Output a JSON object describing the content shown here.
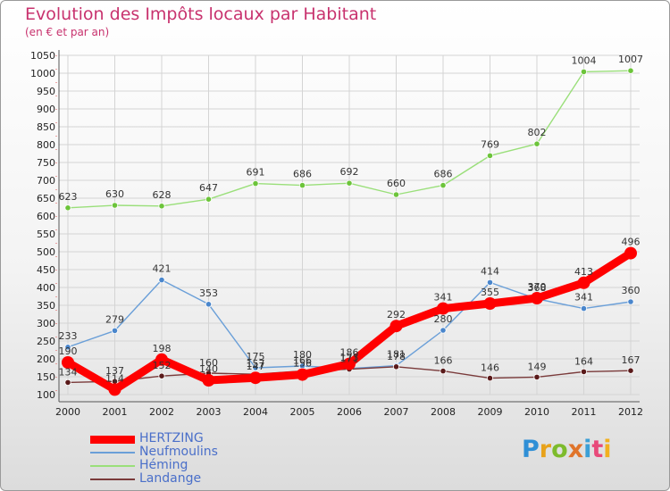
{
  "header": {
    "title": "Evolution des Impôts locaux par Habitant",
    "subtitle": "(en € et par an)"
  },
  "colors": {
    "title": "#c8326e",
    "legend_text": "#4a6fc9",
    "grid": "#d4d4d4"
  },
  "brand": {
    "text": "Proxiti"
  },
  "chart_data": {
    "type": "line",
    "title": "Evolution des Impôts locaux par Habitant",
    "subtitle": "(en € et par an)",
    "xlabel": "",
    "ylabel": "",
    "categories": [
      "2000",
      "2001",
      "2002",
      "2003",
      "2004",
      "2005",
      "2006",
      "2007",
      "2008",
      "2009",
      "2010",
      "2011",
      "2012"
    ],
    "ylim": [
      100,
      1050
    ],
    "yticks": [
      100,
      150,
      200,
      250,
      300,
      350,
      400,
      450,
      500,
      550,
      600,
      650,
      700,
      750,
      800,
      850,
      900,
      950,
      1000,
      1050
    ],
    "grid": true,
    "legend_position": "bottom-left",
    "series": [
      {
        "name": "HERTZING",
        "color": "#ff0000",
        "marker_color": "#ff0000",
        "bold": true,
        "values": [
          190,
          114,
          198,
          140,
          147,
          156,
          186,
          292,
          341,
          355,
          370,
          413,
          496
        ]
      },
      {
        "name": "Neufmoulins",
        "color": "#6a9fd8",
        "marker_color": "#4a86cc",
        "bold": false,
        "values": [
          233,
          279,
          421,
          353,
          175,
          180,
          173,
          181,
          280,
          414,
          368,
          341,
          360
        ]
      },
      {
        "name": "Héming",
        "color": "#9adf7a",
        "marker_color": "#6cc43a",
        "bold": false,
        "values": [
          623,
          630,
          628,
          647,
          691,
          686,
          692,
          660,
          686,
          769,
          802,
          1004,
          1007
        ]
      },
      {
        "name": "Landange",
        "color": "#7a3a3a",
        "marker_color": "#5a1a1a",
        "bold": false,
        "values": [
          134,
          137,
          152,
          160,
          157,
          166,
          171,
          178,
          166,
          146,
          149,
          164,
          167
        ]
      }
    ]
  }
}
